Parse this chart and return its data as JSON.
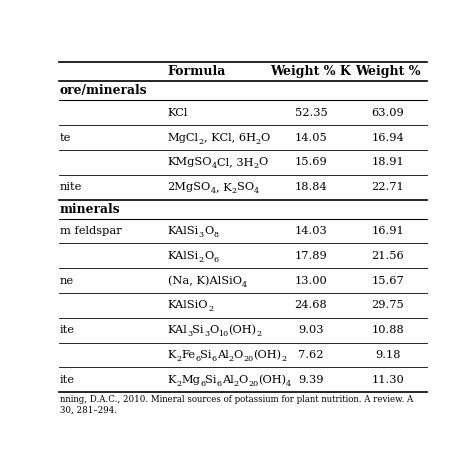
{
  "col_headers": [
    "Formula",
    "Weight % K",
    "Weight %"
  ],
  "section1_header": "ore/minerals",
  "section2_header": "minerals",
  "rows": [
    {
      "mineral": "",
      "formula_parts": [
        {
          "text": "KCl",
          "style": "normal"
        }
      ],
      "wk": "52.35",
      "wk2o": "63.09",
      "section": 1
    },
    {
      "mineral": "te",
      "formula_parts": [
        {
          "text": "MgCl",
          "style": "normal"
        },
        {
          "text": "2",
          "style": "sub"
        },
        {
          "text": ", KCl, 6H",
          "style": "normal"
        },
        {
          "text": "2",
          "style": "sub"
        },
        {
          "text": "O",
          "style": "normal"
        }
      ],
      "wk": "14.05",
      "wk2o": "16.94",
      "section": 1
    },
    {
      "mineral": "",
      "formula_parts": [
        {
          "text": "KMgSO",
          "style": "normal"
        },
        {
          "text": "4",
          "style": "sub"
        },
        {
          "text": "Cl, 3H",
          "style": "normal"
        },
        {
          "text": "2",
          "style": "sub"
        },
        {
          "text": "O",
          "style": "normal"
        }
      ],
      "wk": "15.69",
      "wk2o": "18.91",
      "section": 1
    },
    {
      "mineral": "nite",
      "formula_parts": [
        {
          "text": "2MgSO",
          "style": "normal"
        },
        {
          "text": "4",
          "style": "sub"
        },
        {
          "text": ", K",
          "style": "normal"
        },
        {
          "text": "2",
          "style": "sub"
        },
        {
          "text": "SO",
          "style": "normal"
        },
        {
          "text": "4",
          "style": "sub"
        }
      ],
      "wk": "18.84",
      "wk2o": "22.71",
      "section": 1
    },
    {
      "mineral": "m feldspar",
      "formula_parts": [
        {
          "text": "KAlSi",
          "style": "normal"
        },
        {
          "text": "3",
          "style": "sub"
        },
        {
          "text": "O",
          "style": "normal"
        },
        {
          "text": "8",
          "style": "sub"
        }
      ],
      "wk": "14.03",
      "wk2o": "16.91",
      "section": 2
    },
    {
      "mineral": "",
      "formula_parts": [
        {
          "text": "KAlSi",
          "style": "normal"
        },
        {
          "text": "2",
          "style": "sub"
        },
        {
          "text": "O",
          "style": "normal"
        },
        {
          "text": "6",
          "style": "sub"
        }
      ],
      "wk": "17.89",
      "wk2o": "21.56",
      "section": 2
    },
    {
      "mineral": "ne",
      "formula_parts": [
        {
          "text": "(Na, K)AlSiO",
          "style": "normal"
        },
        {
          "text": "4",
          "style": "sub"
        }
      ],
      "wk": "13.00",
      "wk2o": "15.67",
      "section": 2
    },
    {
      "mineral": "",
      "formula_parts": [
        {
          "text": "KAlSiO",
          "style": "normal"
        },
        {
          "text": "2",
          "style": "sub"
        }
      ],
      "wk": "24.68",
      "wk2o": "29.75",
      "section": 2
    },
    {
      "mineral": "ite",
      "formula_parts": [
        {
          "text": "KAl",
          "style": "normal"
        },
        {
          "text": "3",
          "style": "sub"
        },
        {
          "text": "Si",
          "style": "normal"
        },
        {
          "text": "3",
          "style": "sub"
        },
        {
          "text": "O",
          "style": "normal"
        },
        {
          "text": "10",
          "style": "sub"
        },
        {
          "text": "(OH)",
          "style": "normal"
        },
        {
          "text": "2",
          "style": "sub"
        }
      ],
      "wk": "9.03",
      "wk2o": "10.88",
      "section": 2
    },
    {
      "mineral": "",
      "formula_parts": [
        {
          "text": "K",
          "style": "normal"
        },
        {
          "text": "2",
          "style": "sub"
        },
        {
          "text": "Fe",
          "style": "normal"
        },
        {
          "text": "6",
          "style": "sub"
        },
        {
          "text": "Si",
          "style": "normal"
        },
        {
          "text": "6",
          "style": "sub"
        },
        {
          "text": "Al",
          "style": "normal"
        },
        {
          "text": "2",
          "style": "sub"
        },
        {
          "text": "O",
          "style": "normal"
        },
        {
          "text": "20",
          "style": "sub"
        },
        {
          "text": "(OH)",
          "style": "normal"
        },
        {
          "text": "2",
          "style": "sub"
        }
      ],
      "wk": "7.62",
      "wk2o": "9.18",
      "section": 2
    },
    {
      "mineral": "ite",
      "formula_parts": [
        {
          "text": "K",
          "style": "normal"
        },
        {
          "text": "2",
          "style": "sub"
        },
        {
          "text": "Mg",
          "style": "normal"
        },
        {
          "text": "6",
          "style": "sub"
        },
        {
          "text": "Si",
          "style": "normal"
        },
        {
          "text": "6",
          "style": "sub"
        },
        {
          "text": "Al",
          "style": "normal"
        },
        {
          "text": "2",
          "style": "sub"
        },
        {
          "text": "O",
          "style": "normal"
        },
        {
          "text": "20",
          "style": "sub"
        },
        {
          "text": "(OH)",
          "style": "normal"
        },
        {
          "text": "4",
          "style": "sub"
        }
      ],
      "wk": "9.39",
      "wk2o": "11.30",
      "section": 2
    }
  ],
  "footnote": "nning, D.A.C., 2010. Mineral sources of potassium for plant nutrition. A review. A\n30, 281–294.",
  "bg_color": "#ffffff",
  "line_color": "#000000"
}
